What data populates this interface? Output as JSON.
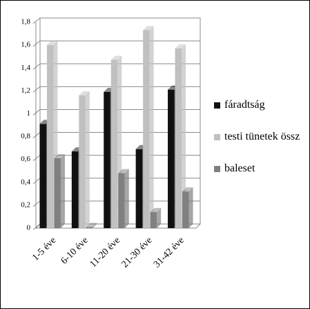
{
  "chart_data": {
    "type": "bar",
    "categories": [
      "1-5 éve",
      "6-10 éve",
      "11-20 éve",
      "21-30 éve",
      "31-42 éve"
    ],
    "series": [
      {
        "name": "fáradtság",
        "color": "#111111",
        "values": [
          0.91,
          0.67,
          1.19,
          0.69,
          1.21
        ]
      },
      {
        "name": "testi tünetek össz",
        "color": "#c0c0c0",
        "values": [
          1.6,
          1.16,
          1.47,
          1.73,
          1.57
        ]
      },
      {
        "name": "baleset",
        "color": "#808080",
        "values": [
          0.61,
          0.01,
          0.48,
          0.14,
          0.32
        ]
      }
    ],
    "ylim": [
      0,
      1.8
    ],
    "yticks": [
      0,
      {
        "value": 0.2,
        "label": "0,2"
      },
      {
        "value": 0.4,
        "label": "0,4"
      },
      {
        "value": 0.6,
        "label": "0,6"
      },
      {
        "value": 0.8,
        "label": "0,8"
      },
      1,
      {
        "value": 1.2,
        "label": "1,2"
      },
      {
        "value": 1.4,
        "label": "1,4"
      },
      {
        "value": 1.6,
        "label": "1,6"
      },
      {
        "value": 1.8,
        "label": "1,8"
      }
    ],
    "grid": true,
    "legend": "right"
  }
}
